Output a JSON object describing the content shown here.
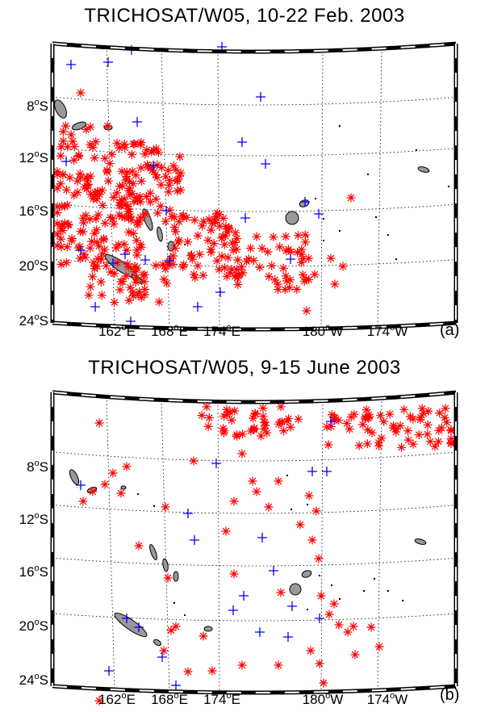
{
  "colors": {
    "detection": "#ff0000",
    "no_detection": "#0000ff",
    "land": "#999999",
    "grid": "#000000"
  },
  "panels": [
    {
      "title": "TRICHOSAT/W05, 10-22 Feb. 2003",
      "letter": "(a)",
      "lat_labels": [
        {
          "deg": "8",
          "hem": "S"
        },
        {
          "deg": "12",
          "hem": "S"
        },
        {
          "deg": "16",
          "hem": "S"
        },
        {
          "deg": "20",
          "hem": "S"
        },
        {
          "deg": "24",
          "hem": "S"
        }
      ],
      "lon_labels": [
        {
          "deg": "162",
          "hem": "E"
        },
        {
          "deg": "168",
          "hem": "E"
        },
        {
          "deg": "174",
          "hem": "E"
        },
        {
          "deg": "180",
          "hem": "W"
        },
        {
          "deg": "174",
          "hem": "W"
        }
      ]
    },
    {
      "title": "TRICHOSAT/W05, 9-15 June  2003",
      "letter": "(b)",
      "lat_labels": [
        {
          "deg": "8",
          "hem": "S"
        },
        {
          "deg": "12",
          "hem": "S"
        },
        {
          "deg": "16",
          "hem": "S"
        },
        {
          "deg": "20",
          "hem": "S"
        },
        {
          "deg": "24",
          "hem": "S"
        }
      ],
      "lon_labels": [
        {
          "deg": "162",
          "hem": "E"
        },
        {
          "deg": "168",
          "hem": "E"
        },
        {
          "deg": "174",
          "hem": "E"
        },
        {
          "deg": "180",
          "hem": "W"
        },
        {
          "deg": "174",
          "hem": "W"
        }
      ]
    }
  ]
}
